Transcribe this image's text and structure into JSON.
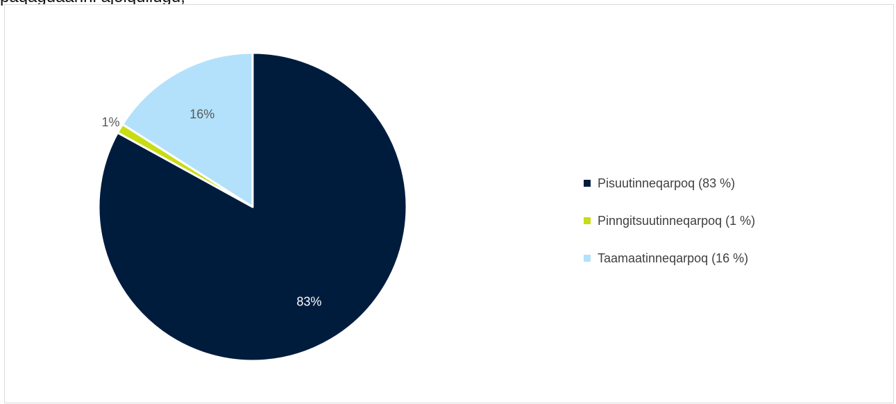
{
  "page": {
    "top_text": "paqaguaanni ajoiqullugu, "
  },
  "chart_data": {
    "type": "pie",
    "title": "",
    "start_angle_deg": 0,
    "direction": "clockwise",
    "legend_position": "right",
    "categories": [
      "Pisuutinneqarpoq",
      "Pinngitsuutinneqarpoq",
      "Taamaatinneqarpoq"
    ],
    "values": [
      83,
      1,
      16
    ],
    "data_labels": [
      "83%",
      "1%",
      "16%"
    ],
    "legend_labels": [
      "Pisuutinneqarpoq (83 %)",
      "Pinngitsuutinneqarpoq (1 %)",
      "Taamaatinneqarpoq (16 %)"
    ],
    "colors": [
      "#001c3d",
      "#c8dc14",
      "#b3e1fb"
    ],
    "label_colors": [
      "#ffffff",
      "#595959",
      "#595959"
    ]
  }
}
